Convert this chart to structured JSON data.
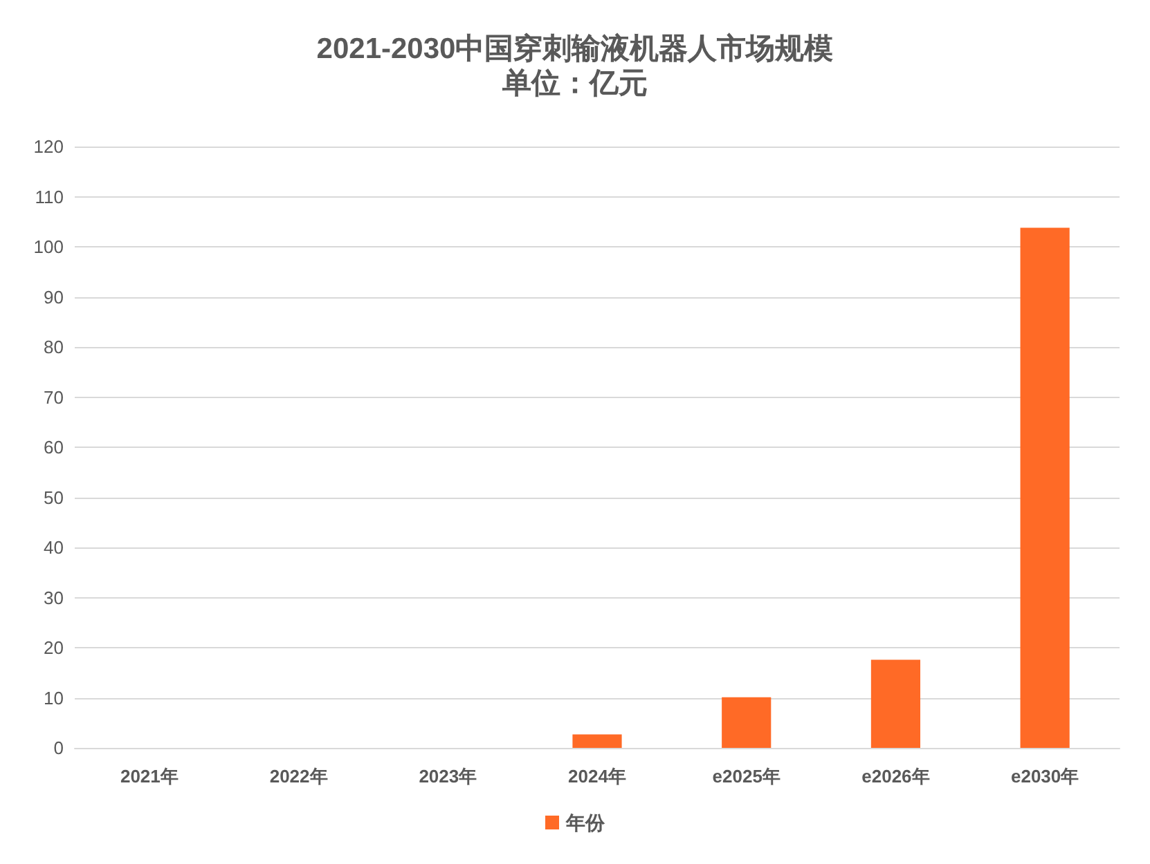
{
  "chart_data": {
    "type": "bar",
    "title": "2021-2030中国穿刺输液机器人市场规模",
    "subtitle": "单位：亿元",
    "categories": [
      "2021年",
      "2022年",
      "2023年",
      "2024年",
      "e2025年",
      "e2026年",
      "e2030年"
    ],
    "series": [
      {
        "name": "年份",
        "color": "#ff6a26",
        "values": [
          0,
          0,
          0,
          2.7,
          10.1,
          17.6,
          103.8
        ]
      }
    ],
    "ylim": [
      0,
      120
    ],
    "yticks": [
      0,
      10,
      20,
      30,
      40,
      50,
      60,
      70,
      80,
      90,
      100,
      110,
      120
    ],
    "grid": "y",
    "legend": "bottom"
  }
}
